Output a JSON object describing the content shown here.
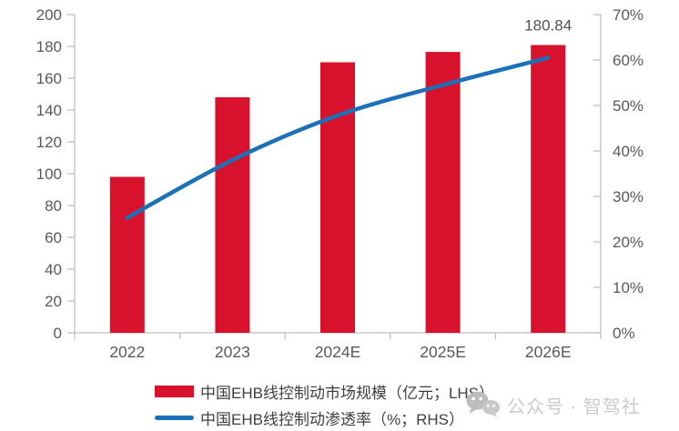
{
  "chart_data": {
    "type": "combo",
    "title": "",
    "categories": [
      "2022",
      "2023",
      "2024E",
      "2025E",
      "2026E"
    ],
    "series": [
      {
        "name": "中国EHB线控制动市场规模（亿元；LHS）",
        "type": "bar",
        "axis": "left",
        "color": "#D8112D",
        "values": [
          98,
          148,
          170,
          176.5,
          180.84
        ]
      },
      {
        "name": "中国EHB线控制动渗透率（%；RHS）",
        "type": "line",
        "axis": "right",
        "color": "#1C70B8",
        "values": [
          25.3,
          38,
          47.8,
          54.5,
          60.5
        ]
      }
    ],
    "left_axis": {
      "min": 0,
      "max": 200,
      "step": 20,
      "tick_labels": [
        "200",
        "180",
        "160",
        "140",
        "120",
        "100",
        "80",
        "60",
        "40",
        "20",
        "0"
      ]
    },
    "right_axis": {
      "min": 0,
      "max": 70,
      "step": 10,
      "tick_labels": [
        "70%",
        "60%",
        "50%",
        "40%",
        "30%",
        "20%",
        "10%",
        "0%"
      ]
    },
    "annotation": {
      "text": "180.84",
      "category_index": 4,
      "series_index": 0
    },
    "grid": false,
    "legend_position": "bottom"
  },
  "legend": {
    "items": [
      {
        "label": "中国EHB线控制动市场规模（亿元；LHS）",
        "swatch": "bar"
      },
      {
        "label": "中国EHB线控制动渗透率（%；RHS）",
        "swatch": "line"
      }
    ]
  },
  "watermark": {
    "icon": "wechat-icon",
    "text": "公众号 · 智驾社"
  },
  "colors": {
    "bar_red": "#D8112D",
    "line_blue": "#1C70B8",
    "axis_text": "#595959",
    "axis_line": "#BFBFBF",
    "annotation_text": "#4D5158",
    "legend_text": "#3F3F3F",
    "watermark_gray": "#C9CBCD",
    "watermark_icon": "#BDBDBD",
    "background": "#FFFFFF"
  }
}
